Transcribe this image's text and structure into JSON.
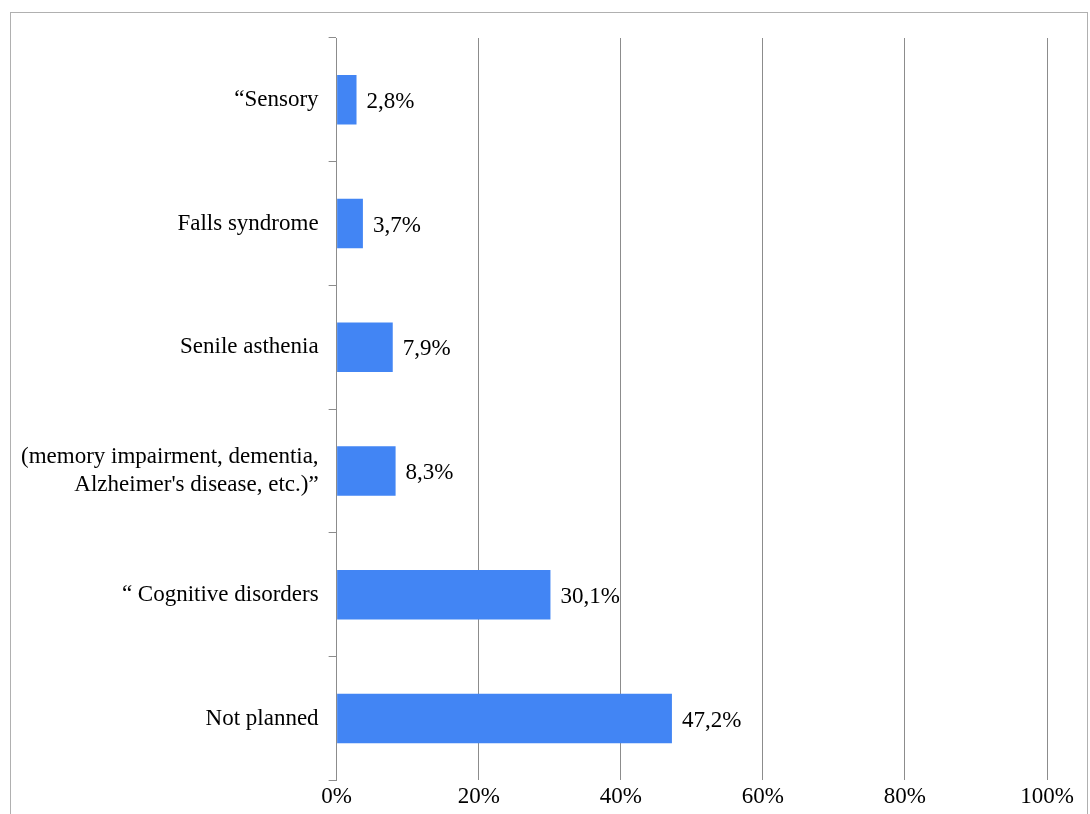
{
  "chart_data": {
    "type": "bar",
    "orientation": "horizontal",
    "categories": [
      "“Sensory",
      "Falls syndrome",
      "Senile asthenia",
      "(memory impairment, dementia,\nAlzheimer's disease, etc.)”",
      "“ Cognitive disorders",
      "Not planned"
    ],
    "values": [
      2.8,
      3.7,
      7.9,
      8.3,
      30.1,
      47.2
    ],
    "value_labels": [
      "2,8%",
      "3,7%",
      "7,9%",
      "8,3%",
      "30,1%",
      "47,2%"
    ],
    "color": "#4285f4",
    "xlim": [
      0,
      100
    ],
    "xticks": [
      {
        "value": 0,
        "label": "0%"
      },
      {
        "value": 20,
        "label": "20%"
      },
      {
        "value": 40,
        "label": "40%"
      },
      {
        "value": 60,
        "label": "60%"
      },
      {
        "value": 80,
        "label": "80%"
      },
      {
        "value": 100,
        "label": "100%"
      }
    ],
    "grid": "x",
    "legend": false
  }
}
